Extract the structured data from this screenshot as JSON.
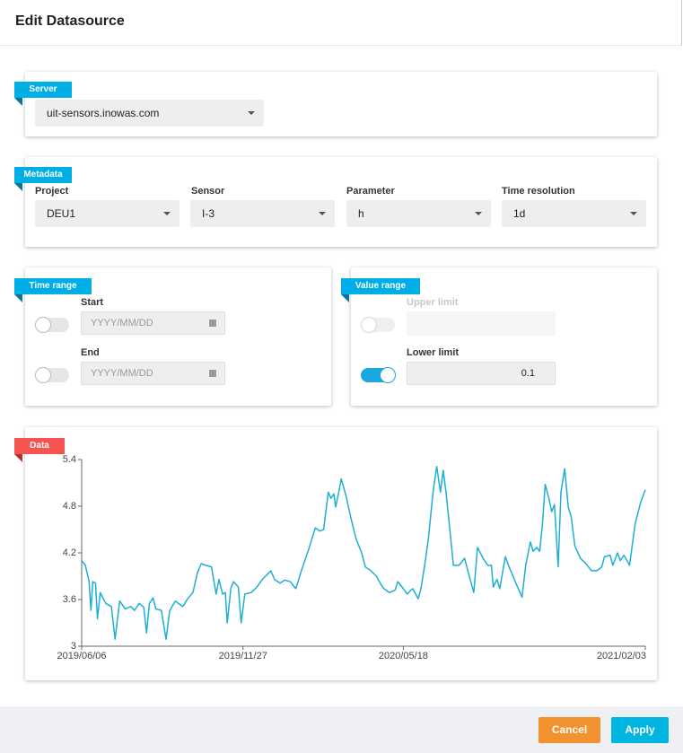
{
  "header": {
    "title": "Edit Datasource"
  },
  "server": {
    "label": "Server",
    "value": "uit-sensors.inowas.com"
  },
  "metadata": {
    "label": "Metadata",
    "fields": [
      {
        "label": "Project",
        "value": "DEU1"
      },
      {
        "label": "Sensor",
        "value": "I-3"
      },
      {
        "label": "Parameter",
        "value": "h"
      },
      {
        "label": "Time resolution",
        "value": "1d"
      }
    ]
  },
  "time_range": {
    "label": "Time range",
    "start": {
      "label": "Start",
      "placeholder": "YYYY/MM/DD"
    },
    "end": {
      "label": "End",
      "placeholder": "YYYY/MM/DD"
    }
  },
  "value_range": {
    "label": "Value range",
    "upper": {
      "label": "Upper limit"
    },
    "lower": {
      "label": "Lower limit",
      "value": 0.1
    }
  },
  "data_panel": {
    "label": "Data"
  },
  "chart_data": {
    "type": "line",
    "x": [
      "2019/06/06",
      "2019/06/10",
      "2019/06/14",
      "2019/06/16",
      "2019/06/18",
      "2019/06/21",
      "2019/06/23",
      "2019/06/26",
      "2019/07/02",
      "2019/07/08",
      "2019/07/12",
      "2019/07/17",
      "2019/07/23",
      "2019/07/29",
      "2019/08/02",
      "2019/08/07",
      "2019/08/12",
      "2019/08/15",
      "2019/08/18",
      "2019/08/22",
      "2019/08/25",
      "2019/08/31",
      "2019/09/05",
      "2019/09/09",
      "2019/09/15",
      "2019/09/23",
      "2019/09/29",
      "2019/10/04",
      "2019/10/09",
      "2019/10/13",
      "2019/10/18",
      "2019/10/24",
      "2019/10/29",
      "2019/11/01",
      "2019/11/05",
      "2019/11/08",
      "2019/11/10",
      "2019/11/14",
      "2019/11/17",
      "2019/11/22",
      "2019/11/25",
      "2019/11/29",
      "2019/12/06",
      "2019/12/12",
      "2019/12/18",
      "2019/12/27",
      "2019/12/31",
      "2020/01/06",
      "2020/01/11",
      "2020/01/17",
      "2020/01/23",
      "2020/01/29",
      "2020/02/06",
      "2020/02/13",
      "2020/02/18",
      "2020/02/22",
      "2020/02/27",
      "2020/03/01",
      "2020/03/04",
      "2020/03/06",
      "2020/03/09",
      "2020/03/12",
      "2020/03/17",
      "2020/03/22",
      "2020/03/28",
      "2020/04/03",
      "2020/04/07",
      "2020/04/13",
      "2020/04/19",
      "2020/04/23",
      "2020/04/27",
      "2020/05/03",
      "2020/05/09",
      "2020/05/12",
      "2020/05/18",
      "2020/05/22",
      "2020/05/28",
      "2020/06/03",
      "2020/06/06",
      "2020/06/10",
      "2020/06/14",
      "2020/06/19",
      "2020/06/23",
      "2020/06/27",
      "2020/06/30",
      "2020/07/03",
      "2020/07/07",
      "2020/07/11",
      "2020/07/17",
      "2020/07/23",
      "2020/07/29",
      "2020/08/02",
      "2020/08/06",
      "2020/08/12",
      "2020/08/17",
      "2020/08/21",
      "2020/08/23",
      "2020/08/27",
      "2020/08/30",
      "2020/09/05",
      "2020/09/09",
      "2020/09/15",
      "2020/09/23",
      "2020/09/27",
      "2020/10/02",
      "2020/10/05",
      "2020/10/09",
      "2020/10/12",
      "2020/10/15",
      "2020/10/18",
      "2020/10/22",
      "2020/10/25",
      "2020/10/28",
      "2020/11/01",
      "2020/11/04",
      "2020/11/08",
      "2020/11/12",
      "2020/11/15",
      "2020/11/19",
      "2020/11/25",
      "2020/12/01",
      "2020/12/07",
      "2020/12/13",
      "2020/12/18",
      "2020/12/21",
      "2020/12/27",
      "2020/12/30",
      "2021/01/04",
      "2021/01/07",
      "2021/01/11",
      "2021/01/17",
      "2021/01/23",
      "2021/01/29",
      "2021/02/03"
    ],
    "series": [
      {
        "color": "#1eaed6",
        "values": [
          4.1,
          4.04,
          3.83,
          3.46,
          3.83,
          3.81,
          3.35,
          3.69,
          3.55,
          3.51,
          3.09,
          3.58,
          3.48,
          3.51,
          3.46,
          3.55,
          3.5,
          3.17,
          3.55,
          3.62,
          3.48,
          3.46,
          3.09,
          3.46,
          3.58,
          3.51,
          3.62,
          3.69,
          3.95,
          4.06,
          4.04,
          4.02,
          3.67,
          3.86,
          3.67,
          3.69,
          3.3,
          3.75,
          3.83,
          3.76,
          3.3,
          3.67,
          3.69,
          3.76,
          3.86,
          3.97,
          3.86,
          3.81,
          3.85,
          3.83,
          3.74,
          3.97,
          4.25,
          4.52,
          4.48,
          4.5,
          4.98,
          4.9,
          4.96,
          4.79,
          4.96,
          5.15,
          4.94,
          4.67,
          4.38,
          4.2,
          4.02,
          3.97,
          3.9,
          3.81,
          3.74,
          3.69,
          3.72,
          3.83,
          3.74,
          3.67,
          3.74,
          3.61,
          3.74,
          4.04,
          4.38,
          4.98,
          5.31,
          4.98,
          5.26,
          4.98,
          4.52,
          4.04,
          4.04,
          4.13,
          3.86,
          3.69,
          4.27,
          4.13,
          4.04,
          4.04,
          3.76,
          3.86,
          3.74,
          4.15,
          4.02,
          3.85,
          3.63,
          4.04,
          4.34,
          4.22,
          4.27,
          4.22,
          4.56,
          5.08,
          4.9,
          4.73,
          4.82,
          4.02,
          4.98,
          5.28,
          4.78,
          4.67,
          4.29,
          4.13,
          4.06,
          3.97,
          3.97,
          4.02,
          4.15,
          4.17,
          4.04,
          4.2,
          4.1,
          4.17,
          4.04,
          4.57,
          4.85,
          5.01
        ]
      }
    ],
    "xlim": [
      "2019/06/06",
      "2021/02/03"
    ],
    "xticks": [
      "2019/06/06",
      "2019/11/27",
      "2020/05/18",
      "2021/02/03"
    ],
    "ylim": [
      3,
      5.4
    ],
    "yticks": [
      3,
      3.6,
      4.2,
      4.8,
      5.4
    ]
  },
  "buttons": {
    "cancel": "Cancel",
    "apply": "Apply"
  }
}
